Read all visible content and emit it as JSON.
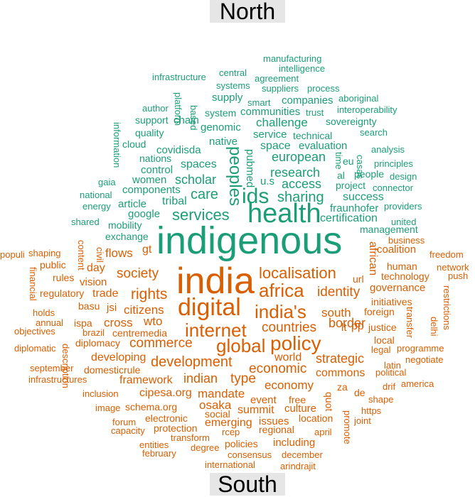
{
  "headers": {
    "north": "North",
    "south": "South"
  },
  "colors": {
    "north": "#1b9e77",
    "south": "#d95f02"
  },
  "north_words": [
    [
      "manufacturing",
      370,
      76,
      13
    ],
    [
      "intelligence",
      392,
      90,
      13
    ],
    [
      "infrastructure",
      214,
      102,
      13
    ],
    [
      "central",
      308,
      96,
      13
    ],
    [
      "agreement",
      358,
      104,
      13
    ],
    [
      "systems",
      304,
      114,
      13
    ],
    [
      "suppliers",
      368,
      118,
      13
    ],
    [
      "process",
      432,
      118,
      13
    ],
    [
      "aboriginal",
      476,
      132,
      13
    ],
    [
      "supply",
      298,
      130,
      15
    ],
    [
      "smart",
      348,
      138,
      13
    ],
    [
      "companies",
      396,
      134,
      15
    ],
    [
      "platform",
      244,
      130,
      13,
      true
    ],
    [
      "author",
      200,
      146,
      13
    ],
    [
      "trust",
      430,
      152,
      13
    ],
    [
      "interoperability",
      474,
      148,
      13
    ],
    [
      "based",
      266,
      148,
      13,
      true
    ],
    [
      "system",
      288,
      152,
      14
    ],
    [
      "communities",
      338,
      150,
      15
    ],
    [
      "sovereignty",
      458,
      164,
      14
    ],
    [
      "support",
      190,
      162,
      14
    ],
    [
      "chain",
      244,
      162,
      15
    ],
    [
      "challenge",
      360,
      164,
      17
    ],
    [
      "genomic",
      282,
      172,
      15
    ],
    [
      "information",
      158,
      172,
      13,
      true
    ],
    [
      "quality",
      190,
      180,
      14
    ],
    [
      "service",
      356,
      182,
      15
    ],
    [
      "technical",
      412,
      184,
      14
    ],
    [
      "search",
      506,
      180,
      13
    ],
    [
      "cloud",
      172,
      196,
      14
    ],
    [
      "native",
      294,
      192,
      15
    ],
    [
      "evaluation",
      420,
      198,
      15
    ],
    [
      "time",
      470,
      214,
      13,
      true
    ],
    [
      "space",
      366,
      198,
      16
    ],
    [
      "covidisda",
      220,
      204,
      15
    ],
    [
      "peoples",
      318,
      206,
      24,
      true
    ],
    [
      "analysis",
      522,
      204,
      13
    ],
    [
      "nations",
      196,
      216,
      14
    ],
    [
      "pubmed",
      344,
      210,
      15,
      true
    ],
    [
      "european",
      382,
      212,
      18
    ],
    [
      "eu",
      482,
      220,
      14
    ],
    [
      "casas",
      500,
      218,
      13,
      true
    ],
    [
      "spaces",
      254,
      224,
      16
    ],
    [
      "control",
      198,
      232,
      15
    ],
    [
      "scholar",
      246,
      244,
      18
    ],
    [
      "research",
      380,
      234,
      18
    ],
    [
      "al",
      474,
      240,
      14
    ],
    [
      "principles",
      526,
      224,
      13
    ],
    [
      "people",
      498,
      238,
      14
    ],
    [
      "gaia",
      138,
      250,
      13
    ],
    [
      "women",
      186,
      246,
      15
    ],
    [
      "u.s",
      366,
      248,
      15
    ],
    [
      "access",
      396,
      250,
      18
    ],
    [
      "design",
      548,
      242,
      13
    ],
    [
      "project",
      472,
      254,
      14
    ],
    [
      "ids",
      340,
      262,
      30
    ],
    [
      "components",
      172,
      260,
      15
    ],
    [
      "tribal",
      228,
      276,
      16
    ],
    [
      "sharing",
      390,
      268,
      20
    ],
    [
      "connector",
      524,
      258,
      13
    ],
    [
      "national",
      112,
      268,
      13
    ],
    [
      "care",
      268,
      264,
      20
    ],
    [
      "success",
      482,
      270,
      16
    ],
    [
      "energy",
      116,
      284,
      13
    ],
    [
      "article",
      166,
      280,
      15
    ],
    [
      "services",
      242,
      292,
      22
    ],
    [
      "health",
      348,
      282,
      38
    ],
    [
      "fraunhofer",
      464,
      286,
      15
    ],
    [
      "providers",
      540,
      284,
      13
    ],
    [
      "google",
      180,
      294,
      15
    ],
    [
      "united",
      550,
      306,
      13
    ],
    [
      "shared",
      100,
      306,
      13
    ],
    [
      "mobility",
      152,
      310,
      14
    ],
    [
      "certification",
      450,
      300,
      16
    ],
    [
      "management",
      506,
      316,
      14
    ],
    [
      "exchange",
      148,
      326,
      14
    ],
    [
      "indigenous",
      220,
      312,
      54
    ]
  ],
  "south_words": [
    [
      "business",
      546,
      332,
      13
    ],
    [
      "content",
      108,
      338,
      13,
      true
    ],
    [
      "civil",
      134,
      348,
      13,
      true
    ],
    [
      "coalition",
      530,
      344,
      15
    ],
    [
      "gt",
      200,
      344,
      16
    ],
    [
      "african",
      516,
      340,
      16,
      true
    ],
    [
      "freedom",
      604,
      352,
      13
    ],
    [
      "populi",
      0,
      352,
      13
    ],
    [
      "shaping",
      40,
      350,
      13
    ],
    [
      "flows",
      148,
      348,
      17
    ],
    [
      "day",
      122,
      370,
      16
    ],
    [
      "human",
      544,
      368,
      14
    ],
    [
      "network",
      614,
      370,
      13
    ],
    [
      "public",
      56,
      366,
      14
    ],
    [
      "financial",
      40,
      376,
      13,
      true
    ],
    [
      "push",
      630,
      382,
      13
    ],
    [
      "society",
      164,
      376,
      19
    ],
    [
      "localisation",
      364,
      374,
      22
    ],
    [
      "technology",
      536,
      382,
      14
    ],
    [
      "rules",
      74,
      384,
      14
    ],
    [
      "vision",
      112,
      390,
      15
    ],
    [
      "india",
      248,
      370,
      52
    ],
    [
      "url",
      496,
      386,
      14
    ],
    [
      "governance",
      520,
      398,
      15
    ],
    [
      "africa",
      364,
      396,
      26
    ],
    [
      "regulatory",
      56,
      406,
      14
    ],
    [
      "trade",
      130,
      406,
      16
    ],
    [
      "rights",
      184,
      404,
      21
    ],
    [
      "identity",
      446,
      402,
      19
    ],
    [
      "restrictions",
      622,
      402,
      13,
      true
    ],
    [
      "initiatives",
      522,
      418,
      14
    ],
    [
      "basu",
      110,
      424,
      14
    ],
    [
      "jsi",
      150,
      426,
      15
    ],
    [
      "citizens",
      174,
      428,
      17
    ],
    [
      "digital",
      250,
      416,
      34
    ],
    [
      "india's",
      358,
      426,
      26
    ],
    [
      "south",
      452,
      432,
      17
    ],
    [
      "foreign",
      512,
      432,
      14
    ],
    [
      "holds",
      46,
      434,
      13
    ],
    [
      "transfer",
      570,
      432,
      13,
      true
    ],
    [
      "cross",
      146,
      446,
      17
    ],
    [
      "wto",
      202,
      444,
      17
    ],
    [
      "annual",
      50,
      448,
      13
    ],
    [
      "ispa",
      104,
      448,
      14
    ],
    [
      "delhi",
      604,
      446,
      13,
      true
    ],
    [
      "border",
      462,
      446,
      18
    ],
    [
      "justice",
      518,
      454,
      14
    ],
    [
      "objectives",
      20,
      460,
      13
    ],
    [
      "brazil",
      116,
      462,
      13
    ],
    [
      "centremedia",
      158,
      462,
      14
    ],
    [
      "description",
      86,
      484,
      13,
      true
    ],
    [
      "internet",
      260,
      452,
      26
    ],
    [
      "countries",
      368,
      452,
      19
    ],
    [
      "lt",
      480,
      454,
      15
    ],
    [
      "pp",
      494,
      452,
      16
    ],
    [
      "local",
      526,
      472,
      14
    ],
    [
      "diplomacy",
      106,
      476,
      14
    ],
    [
      "commerce",
      182,
      474,
      19
    ],
    [
      "global",
      304,
      474,
      26
    ],
    [
      "policy",
      380,
      470,
      28
    ],
    [
      "diplomatic",
      20,
      484,
      13
    ],
    [
      "legal",
      522,
      486,
      13
    ],
    [
      "programme",
      558,
      484,
      13
    ],
    [
      "world",
      386,
      496,
      16
    ],
    [
      "developing",
      128,
      496,
      16
    ],
    [
      "development",
      212,
      500,
      20
    ],
    [
      "strategic",
      444,
      496,
      18
    ],
    [
      "negotiate",
      570,
      500,
      13
    ],
    [
      "september",
      42,
      512,
      13
    ],
    [
      "domesticrule",
      118,
      514,
      14
    ],
    [
      "economic",
      350,
      510,
      19
    ],
    [
      "latin",
      540,
      508,
      13
    ],
    [
      "commons",
      444,
      518,
      16
    ],
    [
      "indian",
      258,
      524,
      18
    ],
    [
      "type",
      324,
      524,
      19
    ],
    [
      "political",
      528,
      518,
      13
    ],
    [
      "infrastructures",
      40,
      528,
      13
    ],
    [
      "framework",
      168,
      528,
      16
    ],
    [
      "economy",
      372,
      534,
      17
    ],
    [
      "za",
      474,
      538,
      14
    ],
    [
      "america",
      564,
      534,
      13
    ],
    [
      "drif",
      538,
      538,
      13
    ],
    [
      "inclusion",
      116,
      548,
      13
    ],
    [
      "cipesa.org",
      196,
      546,
      16
    ],
    [
      "mandate",
      278,
      546,
      17
    ],
    [
      "de",
      498,
      546,
      14
    ],
    [
      "quot",
      456,
      552,
      14,
      true
    ],
    [
      "shape",
      518,
      556,
      13
    ],
    [
      "event",
      352,
      556,
      15
    ],
    [
      "free",
      406,
      556,
      14
    ],
    [
      "image",
      134,
      568,
      13
    ],
    [
      "schema.org",
      176,
      566,
      14
    ],
    [
      "osaka",
      280,
      562,
      17
    ],
    [
      "summit",
      334,
      570,
      16
    ],
    [
      "culture",
      400,
      568,
      15
    ],
    [
      "promote",
      482,
      578,
      13,
      true
    ],
    [
      "https",
      508,
      572,
      13
    ],
    [
      "social",
      288,
      576,
      14
    ],
    [
      "electronic",
      204,
      582,
      14
    ],
    [
      "forum",
      158,
      588,
      13
    ],
    [
      "emerging",
      288,
      588,
      16
    ],
    [
      "issues",
      364,
      586,
      15
    ],
    [
      "location",
      420,
      582,
      14
    ],
    [
      "joint",
      498,
      586,
      13
    ],
    [
      "capacity",
      156,
      600,
      13
    ],
    [
      "protection",
      216,
      596,
      14
    ],
    [
      "rcep",
      312,
      602,
      13
    ],
    [
      "regional",
      364,
      598,
      14
    ],
    [
      "april",
      442,
      602,
      13
    ],
    [
      "transform",
      240,
      610,
      13
    ],
    [
      "entities",
      196,
      620,
      13
    ],
    [
      "degree",
      268,
      624,
      13
    ],
    [
      "policies",
      316,
      618,
      14
    ],
    [
      "including",
      384,
      616,
      15
    ],
    [
      "february",
      200,
      632,
      13
    ],
    [
      "consensus",
      320,
      634,
      13
    ],
    [
      "december",
      396,
      634,
      13
    ],
    [
      "international",
      288,
      648,
      13
    ],
    [
      "arindrajit",
      394,
      650,
      13
    ]
  ]
}
